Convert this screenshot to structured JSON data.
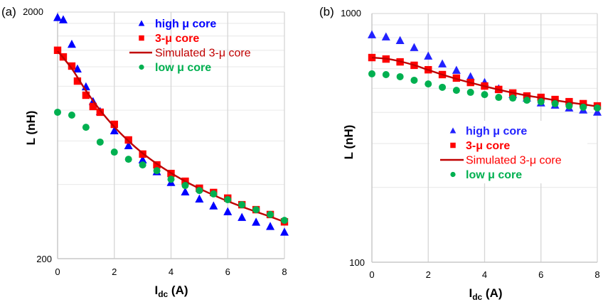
{
  "chart_data": [
    {
      "panel_label": "(a)",
      "type": "scatter",
      "xlabel": "I",
      "xlabel_sub": "dc",
      "xlabel_unit": " (A)",
      "ylabel": "L (nH)",
      "xlim": [
        0,
        8
      ],
      "ylim": [
        200,
        2000
      ],
      "yscale": "log",
      "x_ticks": [
        "0",
        "2",
        "4",
        "6",
        "8"
      ],
      "y_ticks": [
        "200",
        "2000"
      ],
      "y_minor_grid": [
        400,
        600,
        800,
        1000,
        1200,
        1400,
        1600,
        1800
      ],
      "grid": true,
      "legend_position": "top-right",
      "series": [
        {
          "name": "high μ core",
          "marker": "triangle",
          "color": "#0000FF",
          "x": [
            0,
            0.2,
            0.5,
            0.7,
            1,
            1.25,
            1.5,
            2,
            2.5,
            3,
            3.5,
            4,
            4.5,
            5,
            5.5,
            6,
            6.5,
            7,
            7.5,
            8
          ],
          "y": [
            1900,
            1860,
            1480,
            1175,
            995,
            867,
            790,
            660,
            574,
            503,
            450,
            407,
            373,
            349,
            327,
            310,
            294,
            281,
            270,
            256
          ]
        },
        {
          "name": "3-μ core",
          "marker": "square",
          "color": "#FF0000",
          "x": [
            0,
            0.2,
            0.5,
            0.7,
            1,
            1.25,
            1.5,
            2,
            2.5,
            3,
            3.5,
            4,
            4.5,
            5,
            5.5,
            6,
            6.5,
            7,
            7.5,
            8
          ],
          "y": [
            1400,
            1316,
            1208,
            1050,
            920,
            828,
            785,
            701,
            606,
            531,
            480,
            443,
            412,
            386,
            371,
            352,
            331,
            316,
            302,
            282
          ]
        },
        {
          "name": "Simulated 3-μ core",
          "marker": "line",
          "color": "#C00000",
          "x": [
            0,
            0.5,
            1,
            1.5,
            2,
            2.5,
            3,
            3.5,
            4,
            4.5,
            5,
            5.5,
            6,
            6.5,
            7,
            7.5,
            8
          ],
          "y": [
            1390,
            1180,
            960,
            800,
            685,
            600,
            535,
            485,
            445,
            412,
            385,
            362,
            342,
            325,
            310,
            296,
            282
          ]
        },
        {
          "name": "low μ core",
          "marker": "circle",
          "color": "#00B050",
          "x": [
            0,
            0.5,
            1,
            1.5,
            2,
            2.5,
            3,
            3.5,
            4,
            4.5,
            5,
            5.5,
            6,
            6.5,
            7,
            7.5,
            8
          ],
          "y": [
            785,
            764,
            682,
            594,
            541,
            506,
            480,
            455,
            420,
            396,
            378,
            366,
            347,
            331,
            316,
            302,
            286
          ]
        }
      ]
    },
    {
      "panel_label": "(b)",
      "type": "scatter",
      "xlabel": "I",
      "xlabel_sub": "dc",
      "xlabel_unit": " (A)",
      "ylabel": "L (nH)",
      "xlim": [
        0,
        8
      ],
      "ylim": [
        100,
        1000
      ],
      "yscale": "log",
      "x_ticks": [
        "0",
        "2",
        "4",
        "6",
        "8"
      ],
      "y_ticks": [
        "100",
        "1000"
      ],
      "y_minor_grid": [
        200,
        300,
        400,
        500,
        600,
        700,
        800,
        900
      ],
      "grid": true,
      "legend_position": "center",
      "series": [
        {
          "name": "high μ core",
          "marker": "triangle",
          "color": "#2222FF",
          "x": [
            0,
            0.5,
            1,
            1.5,
            2,
            2.5,
            3,
            3.5,
            4,
            4.5,
            5,
            5.5,
            6,
            6.5,
            7,
            7.5,
            8
          ],
          "y": [
            821,
            805,
            778,
            729,
            674,
            627,
            591,
            557,
            528,
            498,
            472,
            457,
            437,
            428,
            417,
            409,
            401
          ]
        },
        {
          "name": "3-μ core",
          "marker": "square",
          "color": "#FF0000",
          "x": [
            0,
            0.5,
            1,
            1.5,
            2,
            2.5,
            3,
            3.5,
            4,
            4.5,
            5,
            5.5,
            6,
            6.5,
            7,
            7.5,
            8
          ],
          "y": [
            665,
            656,
            639,
            619,
            594,
            568,
            550,
            528,
            511,
            495,
            479,
            466,
            460,
            451,
            442,
            434,
            425
          ]
        },
        {
          "name": "Simulated 3-μ core",
          "marker": "line",
          "color": "#C00000",
          "x": [
            0,
            0.5,
            1,
            1.5,
            2,
            2.5,
            3,
            3.5,
            4,
            4.5,
            5,
            5.5,
            6,
            6.5,
            7,
            7.5,
            8
          ],
          "y": [
            665,
            658,
            642,
            620,
            593,
            568,
            546,
            527,
            510,
            494,
            480,
            468,
            458,
            448,
            439,
            431,
            423
          ]
        },
        {
          "name": "low μ core",
          "marker": "circle",
          "color": "#00B050",
          "x": [
            0,
            0.5,
            1,
            1.5,
            2,
            2.5,
            3,
            3.5,
            4,
            4.5,
            5,
            5.5,
            6,
            6.5,
            7,
            7.5,
            8
          ],
          "y": [
            572,
            568,
            557,
            539,
            521,
            505,
            491,
            482,
            472,
            460,
            457,
            448,
            442,
            434,
            425,
            420,
            417
          ]
        }
      ]
    }
  ]
}
